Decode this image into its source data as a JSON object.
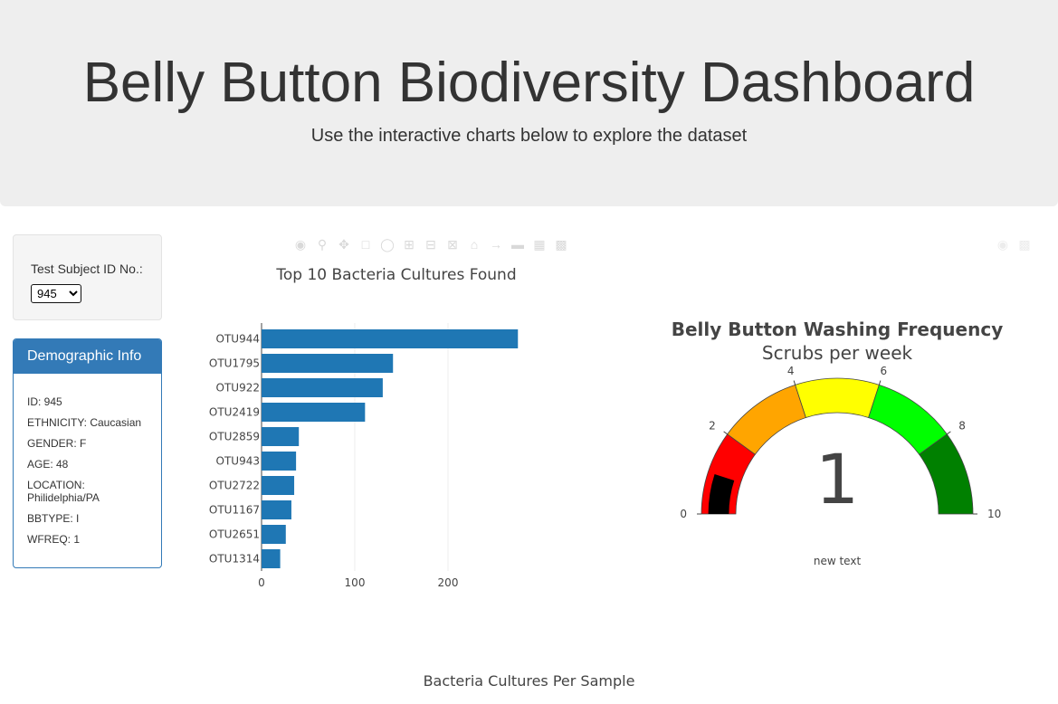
{
  "header": {
    "title": "Belly Button Biodiversity Dashboard",
    "subtitle": "Use the interactive charts below to explore the dataset"
  },
  "selector": {
    "label": "Test Subject ID No.:",
    "selected": "945"
  },
  "demographics": {
    "heading": "Demographic Info",
    "lines": [
      "ID: 945",
      "ETHNICITY: Caucasian",
      "GENDER: F",
      "AGE: 48",
      "LOCATION: Philidelphia/PA",
      "BBTYPE: I",
      "WFREQ: 1"
    ]
  },
  "modebar_icons": [
    "camera-icon",
    "zoom-icon",
    "pan-icon",
    "box-select-icon",
    "lasso-icon",
    "zoom-in-icon",
    "zoom-out-icon",
    "autoscale-icon",
    "reset-axes-icon",
    "spike-lines-icon",
    "compare-hover-icon",
    "closest-hover-icon",
    "plotly-logo-icon"
  ],
  "gauge_modebar_icons": [
    "camera-icon",
    "plotly-logo-icon"
  ],
  "chart_data": [
    {
      "type": "bar",
      "orientation": "horizontal",
      "title": "Top 10 Bacteria Cultures Found",
      "categories": [
        "OTU944",
        "OTU1795",
        "OTU922",
        "OTU2419",
        "OTU2859",
        "OTU943",
        "OTU2722",
        "OTU1167",
        "OTU2651",
        "OTU1314"
      ],
      "values": [
        275,
        141,
        130,
        111,
        40,
        37,
        35,
        32,
        26,
        20
      ],
      "xticks": [
        0,
        100,
        200
      ],
      "xlim": [
        0,
        280
      ],
      "color": "#1f77b4",
      "grid": true
    },
    {
      "type": "gauge",
      "title": "Belly Button Washing Frequency",
      "subtitle": "Scrubs per week",
      "value": 1,
      "range": [
        0,
        10
      ],
      "ticks": [
        0,
        2,
        4,
        6,
        8,
        10
      ],
      "steps": [
        {
          "range": [
            0,
            2
          ],
          "color": "#ff0000"
        },
        {
          "range": [
            2,
            4
          ],
          "color": "#ffa500"
        },
        {
          "range": [
            4,
            6
          ],
          "color": "#ffff00"
        },
        {
          "range": [
            6,
            8
          ],
          "color": "#00ff00"
        },
        {
          "range": [
            8,
            10
          ],
          "color": "#008000"
        }
      ],
      "bar_color": "#000000",
      "annotation": "new text"
    },
    {
      "type": "bubble",
      "title": "Bacteria Cultures Per Sample"
    }
  ]
}
